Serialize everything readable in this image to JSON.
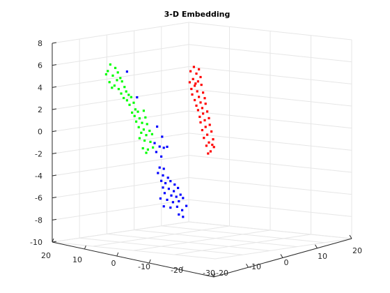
{
  "chart_data": {
    "type": "scatter",
    "title": "3-D Embedding",
    "xlabel": "",
    "ylabel": "",
    "zlabel": "",
    "grid": true,
    "view": "3d",
    "xlim": [
      -30,
      20
    ],
    "ylim": [
      -20,
      20
    ],
    "zlim": [
      -10,
      8
    ],
    "z_ticks": [
      "8",
      "6",
      "4",
      "2",
      "0",
      "-2",
      "-4",
      "-6",
      "-8",
      "-10"
    ],
    "x_ticks": [
      "20",
      "10",
      "0",
      "-10",
      "-20",
      "-30"
    ],
    "y_ticks": [
      "-20",
      "-10",
      "0",
      "10",
      "20"
    ],
    "series": [
      {
        "color": "#00ff00",
        "points": [
          [
            -6.8,
            5.8
          ],
          [
            -6.2,
            5.5
          ],
          [
            -7.1,
            5.2
          ],
          [
            -5.9,
            5.1
          ],
          [
            -6.5,
            4.8
          ],
          [
            -7.3,
            4.9
          ],
          [
            -5.6,
            4.6
          ],
          [
            -6.0,
            4.4
          ],
          [
            -6.9,
            4.2
          ],
          [
            -5.4,
            4.3
          ],
          [
            -6.3,
            3.9
          ],
          [
            -5.1,
            3.8
          ],
          [
            -5.8,
            3.6
          ],
          [
            -6.6,
            3.7
          ],
          [
            -4.9,
            3.4
          ],
          [
            -5.5,
            3.2
          ],
          [
            -4.6,
            3.1
          ],
          [
            -5.2,
            2.8
          ],
          [
            -4.8,
            2.6
          ],
          [
            -4.3,
            2.9
          ],
          [
            -4.0,
            2.4
          ],
          [
            -4.5,
            2.2
          ],
          [
            -3.8,
            1.8
          ],
          [
            -4.2,
            1.5
          ],
          [
            -3.5,
            1.6
          ],
          [
            -2.8,
            1.7
          ],
          [
            -3.9,
            1.2
          ],
          [
            -3.3,
            1.0
          ],
          [
            -2.6,
            1.1
          ],
          [
            -3.7,
            0.7
          ],
          [
            -3.0,
            0.6
          ],
          [
            -2.4,
            0.5
          ],
          [
            -3.4,
            0.2
          ],
          [
            -2.8,
            0.0
          ],
          [
            -2.1,
            -0.1
          ],
          [
            -3.1,
            -0.3
          ],
          [
            -2.5,
            -0.5
          ],
          [
            -1.8,
            -0.4
          ],
          [
            -3.3,
            -0.8
          ],
          [
            -2.7,
            -1.0
          ],
          [
            -2.0,
            -1.1
          ],
          [
            -2.9,
            -1.7
          ],
          [
            -2.3,
            -1.8
          ],
          [
            -1.7,
            -1.6
          ],
          [
            -2.5,
            -2.1
          ]
        ]
      },
      {
        "color": "#0000ff",
        "points": [
          [
            -4.8,
            5.2
          ],
          [
            -3.6,
            2.9
          ],
          [
            -1.2,
            0.3
          ],
          [
            -0.6,
            -0.6
          ],
          [
            -1.5,
            -1.2
          ],
          [
            -0.9,
            -1.5
          ],
          [
            -1.3,
            -2.0
          ],
          [
            -0.4,
            -1.6
          ],
          [
            -0.7,
            -2.4
          ],
          [
            0.0,
            -1.5
          ],
          [
            -0.9,
            -3.4
          ],
          [
            -0.4,
            -3.5
          ],
          [
            -1.1,
            -3.9
          ],
          [
            -0.5,
            -4.1
          ],
          [
            0.1,
            -4.3
          ],
          [
            -0.7,
            -4.6
          ],
          [
            -0.2,
            -4.8
          ],
          [
            0.4,
            -4.6
          ],
          [
            0.9,
            -4.9
          ],
          [
            -0.5,
            -5.2
          ],
          [
            0.2,
            -5.3
          ],
          [
            0.8,
            -5.5
          ],
          [
            1.3,
            -5.2
          ],
          [
            -0.3,
            -5.7
          ],
          [
            0.5,
            -5.9
          ],
          [
            1.1,
            -6.0
          ],
          [
            1.6,
            -5.8
          ],
          [
            -0.8,
            -6.2
          ],
          [
            0.0,
            -6.3
          ],
          [
            0.7,
            -6.5
          ],
          [
            1.4,
            -6.4
          ],
          [
            1.9,
            -6.1
          ],
          [
            -0.4,
            -6.9
          ],
          [
            0.4,
            -7.0
          ],
          [
            1.2,
            -6.9
          ],
          [
            1.8,
            -7.2
          ],
          [
            1.4,
            -7.6
          ],
          [
            1.9,
            -7.8
          ],
          [
            2.3,
            -6.8
          ]
        ]
      },
      {
        "color": "#ff0000",
        "points": [
          [
            3.2,
            5.8
          ],
          [
            3.8,
            5.6
          ],
          [
            2.8,
            5.4
          ],
          [
            3.5,
            5.2
          ],
          [
            4.0,
            4.9
          ],
          [
            3.1,
            4.7
          ],
          [
            3.7,
            4.5
          ],
          [
            2.7,
            4.4
          ],
          [
            3.3,
            4.1
          ],
          [
            4.1,
            4.2
          ],
          [
            2.9,
            3.8
          ],
          [
            3.6,
            3.6
          ],
          [
            4.3,
            3.5
          ],
          [
            3.0,
            3.3
          ],
          [
            3.8,
            3.1
          ],
          [
            4.5,
            3.0
          ],
          [
            3.3,
            2.8
          ],
          [
            4.0,
            2.6
          ],
          [
            3.5,
            2.3
          ],
          [
            4.6,
            2.5
          ],
          [
            4.2,
            2.1
          ],
          [
            3.7,
            1.9
          ],
          [
            4.8,
            1.8
          ],
          [
            4.3,
            1.6
          ],
          [
            3.9,
            1.3
          ],
          [
            5.0,
            1.2
          ],
          [
            4.5,
            1.0
          ],
          [
            4.0,
            0.8
          ],
          [
            5.1,
            0.6
          ],
          [
            4.6,
            0.4
          ],
          [
            4.2,
            0.1
          ],
          [
            5.3,
            0.0
          ],
          [
            4.8,
            -0.3
          ],
          [
            4.4,
            -0.6
          ],
          [
            5.5,
            -0.7
          ],
          [
            5.0,
            -1.0
          ],
          [
            4.7,
            -1.3
          ],
          [
            5.6,
            -1.4
          ],
          [
            5.2,
            -1.8
          ],
          [
            4.9,
            -2.0
          ],
          [
            5.4,
            -1.2
          ],
          [
            3.4,
            4.3
          ]
        ]
      }
    ]
  }
}
